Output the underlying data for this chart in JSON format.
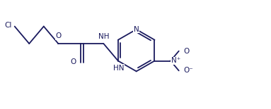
{
  "bg_color": "#ffffff",
  "bond_color": "#1a1a5e",
  "text_color": "#1a1a5e",
  "font_size": 7.5,
  "line_width": 1.3,
  "figsize": [
    3.83,
    1.55
  ],
  "dpi": 100,
  "xlim": [
    0,
    10.5
  ],
  "ylim": [
    0,
    4.0
  ]
}
